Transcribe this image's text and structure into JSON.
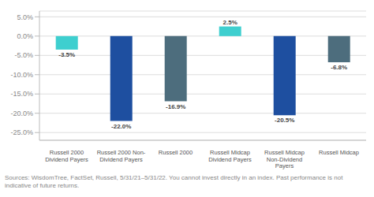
{
  "chart_data": {
    "type": "bar",
    "categories": [
      "Russell 2000\nDividend Payers",
      "Russell 2000 Non-\nDividend Payers",
      "Russell 2000",
      "Russell Midcap\nDividend Payers",
      "Russell Midcap\nNon-Dividend\nPayers",
      "Russell Midcap"
    ],
    "values": [
      -3.5,
      -22.0,
      -16.9,
      2.5,
      -20.5,
      -6.8
    ],
    "value_labels": [
      "-3.5%",
      "-22.0%",
      "-16.9%",
      "2.5%",
      "-20.5%",
      "-6.8%"
    ],
    "data_labels": true,
    "colors": [
      "#3ecfcf",
      "#1e4fa0",
      "#4d6d7d",
      "#3ecfcf",
      "#1e4fa0",
      "#4d6d7d"
    ],
    "ylim": [
      -27,
      6.5
    ],
    "yticks": [
      {
        "value": 5.0,
        "label": "5.0%"
      },
      {
        "value": 0.0,
        "label": "0.0%"
      },
      {
        "value": -5.0,
        "label": "-5.0%"
      },
      {
        "value": -10.0,
        "label": "-10.0%"
      },
      {
        "value": -15.0,
        "label": "-15.0%"
      },
      {
        "value": -20.0,
        "label": "-20.0%"
      },
      {
        "value": -25.0,
        "label": "-25.0%"
      }
    ],
    "grid": true,
    "annotations": [
      "Sources: WisdomTree, FactSet, Russell, 5/31/21–5/31/22. You cannot invest directly in an index. Past performance is not indicative of future returns."
    ]
  }
}
